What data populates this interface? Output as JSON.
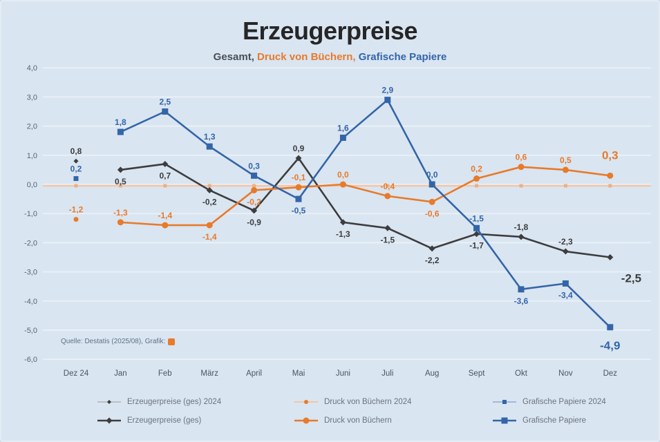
{
  "title": "Erzeugerpreise",
  "subtitle": {
    "parts": [
      {
        "text": "Gesamt, ",
        "color": "#4a4f57"
      },
      {
        "text": "Druck von Büchern, ",
        "color": "#e87a2b"
      },
      {
        "text": "Grafische Papiere",
        "color": "#3465a8"
      }
    ]
  },
  "source": {
    "text": "Quelle: Destatis (2025/08), Grafik:",
    "logo_color": "#e87a2b"
  },
  "chart_data": {
    "type": "line",
    "title": "Erzeugerpreise",
    "subtitle": "Gesamt, Druck von Büchern, Grafische Papiere",
    "categories": [
      "Dez 24",
      "Jan",
      "Feb",
      "März",
      "April",
      "Mai",
      "Juni",
      "Juli",
      "Aug",
      "Sept",
      "Okt",
      "Nov",
      "Dez"
    ],
    "y_ticks": [
      4,
      3,
      2,
      1,
      0,
      -1,
      -2,
      -3,
      -4,
      -5,
      -6
    ],
    "y_tick_labels": [
      "4,0",
      "3,0",
      "2,0",
      "1,0",
      "0,0",
      "-1,0",
      "-2,0",
      "-3,0",
      "-4,0",
      "-5,0",
      "-6,0"
    ],
    "ylim": [
      -6.5,
      4.5
    ],
    "grid": "horizontal",
    "legend_position": "bottom",
    "series": [
      {
        "id": "erzeugerpreise-ges",
        "name": "Erzeugerpreise (ges)",
        "color": "#3d3d3d",
        "marker": "diamond",
        "values": [
          0.8,
          0.5,
          0.7,
          -0.2,
          -0.9,
          0.9,
          -1.3,
          -1.5,
          -2.2,
          -1.7,
          -1.8,
          -2.3,
          -2.5
        ],
        "labels": [
          "0,8",
          "0,5",
          "0,7",
          "-0,2",
          "-0,9",
          "0,9",
          "-1,3",
          "-1,5",
          "-2,2",
          "-1,7",
          "-1,8",
          "-2,3",
          "-2,5"
        ],
        "label_pos": [
          "a",
          "b",
          "b",
          "b",
          "b",
          "a",
          "b",
          "b",
          "b",
          "b",
          "a",
          "a",
          "br"
        ]
      },
      {
        "id": "druck-von-buechern",
        "name": "Druck von Büchern",
        "color": "#e87a2b",
        "marker": "circle",
        "values": [
          -1.2,
          -1.3,
          -1.4,
          -1.4,
          -0.2,
          -0.1,
          0.0,
          -0.4,
          -0.6,
          0.2,
          0.6,
          0.5,
          0.3
        ],
        "labels": [
          "-1,2",
          "-1,3",
          "-1,4",
          "-1,4",
          "-0,2",
          "-0,1",
          "0,0",
          "-0,4",
          "-0,6",
          "0,2",
          "0,6",
          "0,5",
          "0,3"
        ],
        "label_pos": [
          "a",
          "a",
          "a",
          "b",
          "b",
          "a",
          "a",
          "a",
          "b",
          "a",
          "a",
          "a",
          "a"
        ]
      },
      {
        "id": "grafische-papiere",
        "name": "Grafische Papiere",
        "color": "#3465a8",
        "marker": "square",
        "values": [
          0.2,
          1.8,
          2.5,
          1.3,
          0.3,
          -0.5,
          1.6,
          2.9,
          0.0,
          -1.5,
          -3.6,
          -3.4,
          -4.9
        ],
        "labels": [
          "0,2",
          "1,8",
          "2,5",
          "1,3",
          "0,3",
          "-0,5",
          "1,6",
          "2,9",
          "0,0",
          "-1,5",
          "-3,6",
          "-3,4",
          "-4,9"
        ],
        "label_pos": [
          "a",
          "a",
          "a",
          "a",
          "a",
          "b",
          "a",
          "a",
          "a",
          "a",
          "b",
          "b",
          "b"
        ]
      }
    ],
    "series_2024": [
      {
        "id": "erzeugerpreise-ges-2024",
        "name": "Erzeugerpreise (ges) 2024",
        "color": "#b9bfc6",
        "marker_color": "#3d3d3d",
        "visible_line": false
      },
      {
        "id": "druck-von-buechern-2024",
        "name": "Druck von Büchern 2024",
        "color": "#f3c5a4",
        "marker_color": "#eab086",
        "visible_line": true,
        "approx_value": 0.0,
        "note": "flache Linie auf der Nulllinie"
      },
      {
        "id": "grafische-papiere-2024",
        "name": "Grafische Papiere 2024",
        "color": "#9fb8dc",
        "marker_color": "#3465a8",
        "visible_line": false
      }
    ]
  },
  "legend": {
    "rows": [
      [
        {
          "label": "Erzeugerpreise (ges) 2024",
          "line_color": "#b9bfc6",
          "marker_color": "#3d3d3d",
          "marker": "diamond",
          "small": true
        },
        {
          "label": "Druck von Büchern 2024",
          "line_color": "#f3c5a4",
          "marker_color": "#e87a2b",
          "marker": "circle",
          "small": true
        },
        {
          "label": "Grafische Papiere 2024",
          "line_color": "#9fb8dc",
          "marker_color": "#3465a8",
          "marker": "square",
          "small": true
        }
      ],
      [
        {
          "label": "Erzeugerpreise (ges)",
          "line_color": "#3d3d3d",
          "marker_color": "#3d3d3d",
          "marker": "diamond",
          "small": false
        },
        {
          "label": "Druck von Büchern",
          "line_color": "#e87a2b",
          "marker_color": "#e87a2b",
          "marker": "circle",
          "small": false
        },
        {
          "label": "Grafische Papiere",
          "line_color": "#3465a8",
          "marker_color": "#3465a8",
          "marker": "square",
          "small": false
        }
      ]
    ]
  }
}
